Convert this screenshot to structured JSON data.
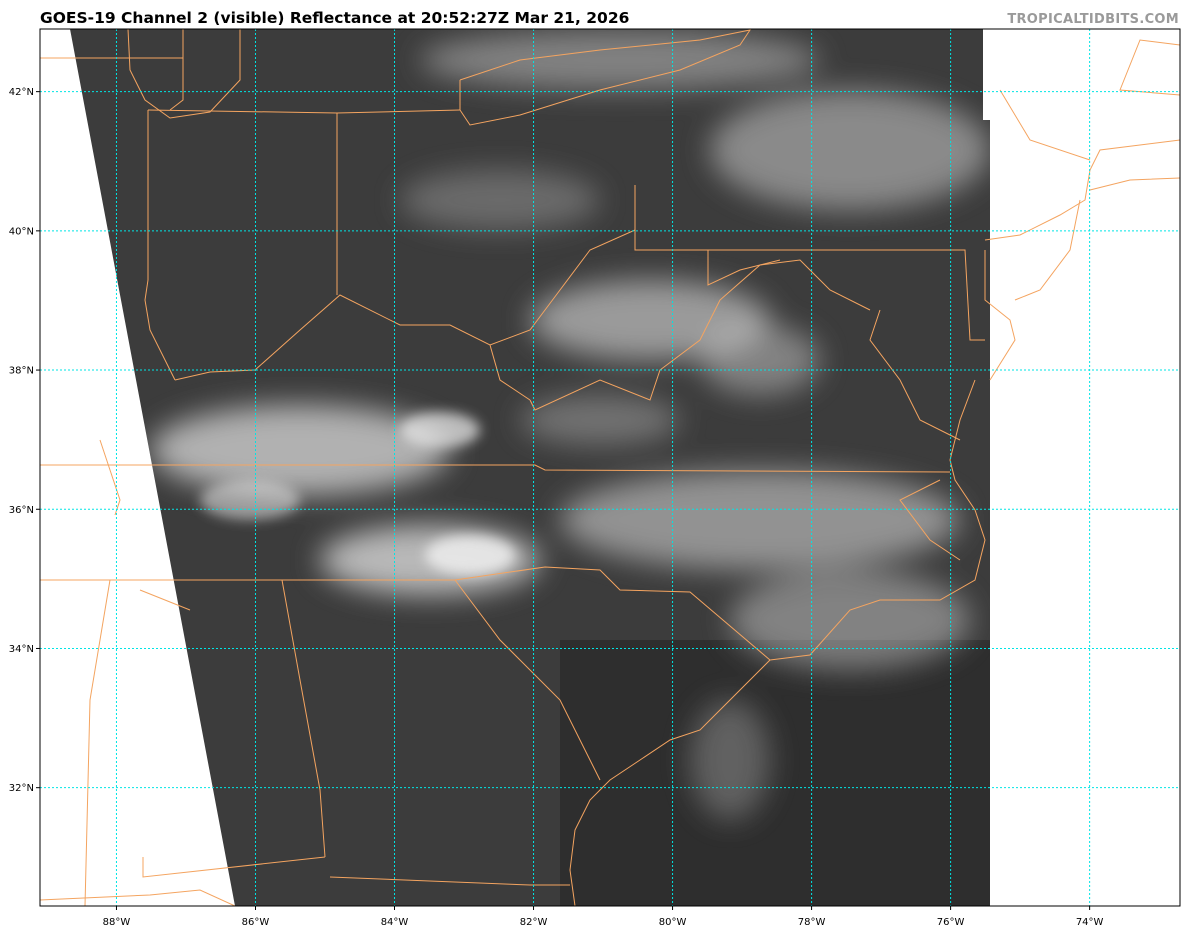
{
  "title": "GOES-19 Channel 2 (visible) Reflectance at 20:52:27Z Mar 21, 2026",
  "watermark": "TROPICALTIDBITS.COM",
  "map": {
    "extent": {
      "lon": [
        -89.1,
        -72.7
      ],
      "lat": [
        30.3,
        42.9
      ]
    },
    "gridlines_lon": [
      -88,
      -86,
      -84,
      -82,
      -80,
      -78,
      -76,
      -74
    ],
    "gridlines_lat": [
      32,
      34,
      36,
      38,
      40,
      42
    ],
    "lon_labels": [
      "88°W",
      "86°W",
      "84°W",
      "82°W",
      "80°W",
      "78°W",
      "76°W",
      "74°W"
    ],
    "lat_labels": [
      "32°N",
      "34°N",
      "36°N",
      "38°N",
      "40°N",
      "42°N"
    ],
    "colors": {
      "gridline": "#00e5e5",
      "borders": "#f4a460",
      "satellite_background": "#3a3a3a",
      "no_data": "#ffffff",
      "title": "#000000",
      "watermark": "#9a9a9a"
    }
  }
}
